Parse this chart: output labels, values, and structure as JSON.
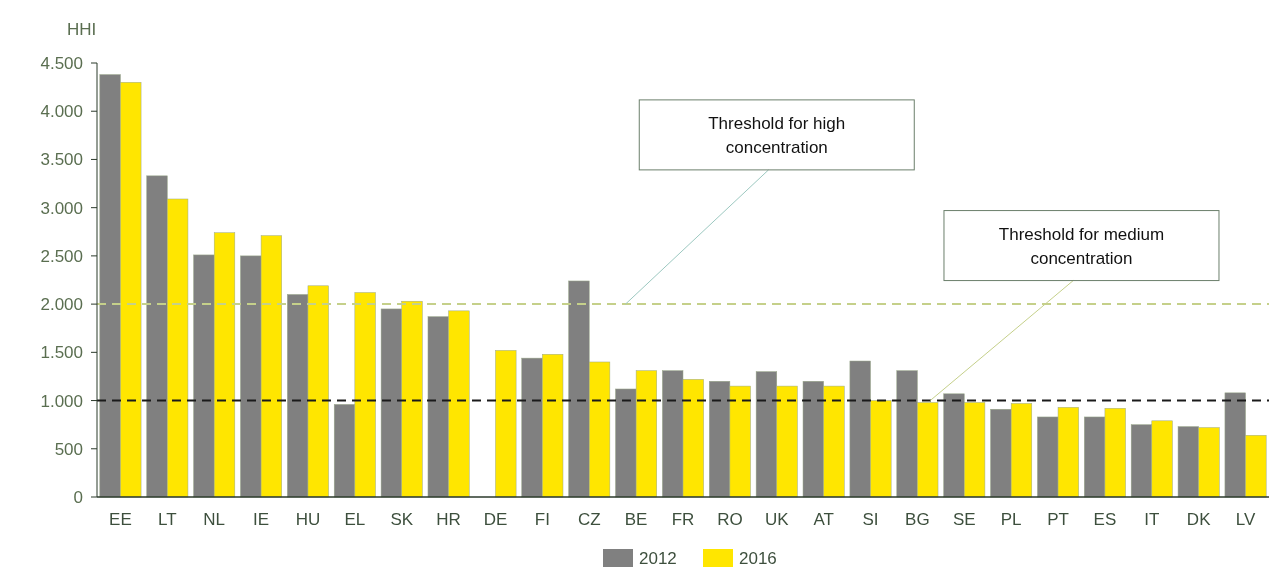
{
  "chart_data": {
    "type": "bar",
    "ylabel": "HHI",
    "categories": [
      "EE",
      "LT",
      "NL",
      "IE",
      "HU",
      "EL",
      "SK",
      "HR",
      "DE",
      "FI",
      "CZ",
      "BE",
      "FR",
      "RO",
      "UK",
      "AT",
      "SI",
      "BG",
      "SE",
      "PL",
      "PT",
      "ES",
      "IT",
      "DK",
      "LV"
    ],
    "series": [
      {
        "name": "2012",
        "color": "#808080",
        "values": [
          4380,
          3330,
          2510,
          2500,
          2100,
          960,
          1950,
          1870,
          null,
          1440,
          2240,
          1120,
          1310,
          1200,
          1300,
          1200,
          1410,
          1310,
          1070,
          910,
          830,
          830,
          750,
          730,
          1080
        ]
      },
      {
        "name": "2016",
        "color": "#ffe600",
        "values": [
          4300,
          3090,
          2740,
          2710,
          2190,
          2120,
          2030,
          1930,
          1520,
          1480,
          1400,
          1310,
          1220,
          1150,
          1150,
          1150,
          1000,
          980,
          980,
          970,
          930,
          920,
          790,
          720,
          640
        ]
      }
    ],
    "ylim": [
      0,
      4500
    ],
    "yticks": [
      0,
      {
        "value": 500,
        "label": "500"
      },
      {
        "value": 1000,
        "label": "1.000"
      },
      {
        "value": 1500,
        "label": "1.500"
      },
      {
        "value": 2000,
        "label": "2.000"
      },
      {
        "value": 2500,
        "label": "2.500"
      },
      {
        "value": 3000,
        "label": "3.000"
      },
      {
        "value": 3500,
        "label": "3.500"
      },
      {
        "value": 4000,
        "label": "4.000"
      },
      {
        "value": 4500,
        "label": "4.500"
      }
    ],
    "ref_lines": [
      {
        "axis": "y",
        "value": 2000,
        "label": "Threshold for high concentration",
        "color": "#c5d08a",
        "line_style": "dashed"
      },
      {
        "axis": "y",
        "value": 1000,
        "label": "Threshold for medium concentration",
        "color": "#1a1a1a",
        "line_style": "dashed"
      }
    ],
    "grid": false,
    "legend": "bottom"
  }
}
